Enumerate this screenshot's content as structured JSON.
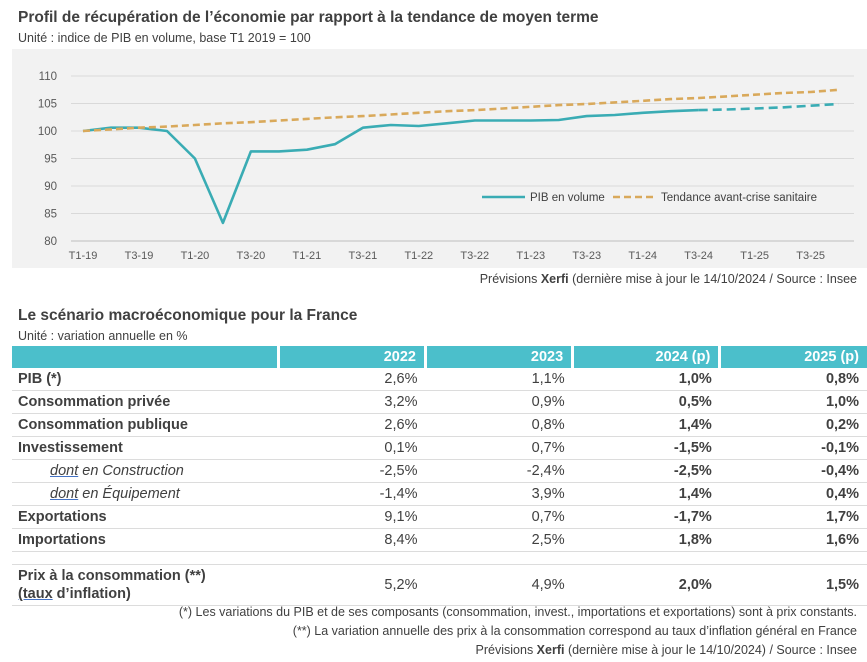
{
  "chart_data": {
    "type": "line",
    "title": "Profil de récupération de l’économie par rapport à la tendance de moyen terme",
    "subtitle": "Unité : indice de PIB en volume, base T1 2019 = 100",
    "ylim": [
      80,
      110
    ],
    "yticks": [
      "80",
      "85",
      "90",
      "95",
      "100",
      "105",
      "110"
    ],
    "grid": "horizontal",
    "legend_position": "inside-right",
    "x": [
      "T1-19",
      "T2-19",
      "T3-19",
      "T4-19",
      "T1-20",
      "T2-20",
      "T3-20",
      "T4-20",
      "T1-21",
      "T2-21",
      "T3-21",
      "T4-21",
      "T1-22",
      "T2-22",
      "T3-22",
      "T4-22",
      "T1-23",
      "T2-23",
      "T3-23",
      "T4-23",
      "T1-24",
      "T2-24",
      "T3-24",
      "T4-24",
      "T1-25",
      "T2-25",
      "T3-25",
      "T4-25"
    ],
    "xtick_labels": [
      "T1-19",
      "T3-19",
      "T1-20",
      "T3-20",
      "T1-21",
      "T3-21",
      "T1-22",
      "T3-22",
      "T1-23",
      "T3-23",
      "T1-24",
      "T3-24",
      "T1-25",
      "T3-25"
    ],
    "series": [
      {
        "name": "PIB en volume",
        "color": "#3aacb4",
        "style": "solid",
        "values": [
          100.0,
          100.6,
          100.6,
          100.0,
          95.0,
          83.3,
          96.3,
          96.3,
          96.6,
          97.6,
          100.6,
          101.1,
          100.9,
          101.4,
          101.9,
          101.9,
          101.9,
          102.0,
          102.7,
          102.9,
          103.3,
          103.6,
          103.8,
          null,
          null,
          null,
          null,
          null
        ]
      },
      {
        "name": "PIB en volume (prévision)",
        "color": "#3aacb4",
        "style": "dashed",
        "values": [
          null,
          null,
          null,
          null,
          null,
          null,
          null,
          null,
          null,
          null,
          null,
          null,
          null,
          null,
          null,
          null,
          null,
          null,
          null,
          null,
          null,
          null,
          103.8,
          103.9,
          104.1,
          104.3,
          104.6,
          104.9
        ]
      },
      {
        "name": "Tendance avant-crise sanitaire",
        "color": "#d9a95b",
        "style": "dashed",
        "values": [
          100.0,
          100.3,
          100.6,
          100.8,
          101.1,
          101.4,
          101.6,
          101.9,
          102.2,
          102.5,
          102.7,
          103.0,
          103.3,
          103.6,
          103.8,
          104.1,
          104.4,
          104.7,
          104.9,
          105.2,
          105.5,
          105.8,
          106.0,
          106.3,
          106.6,
          106.9,
          107.1,
          107.5
        ]
      }
    ],
    "legend": [
      "PIB en volume",
      "Tendance avant-crise sanitaire"
    ]
  },
  "chart_note": {
    "prefix": "Prévisions ",
    "brand": "Xerfi",
    "suffix": " (dernière mise à jour le 14/10/2024 / Source : Insee"
  },
  "scenario": {
    "title": "Le scénario macroéconomique pour la France",
    "unit": "Unité : variation annuelle en %",
    "headers": [
      "",
      "2022",
      "2023",
      "2024 (p)",
      "2025 (p)"
    ],
    "rows": [
      {
        "label": "PIB (*)",
        "v": [
          "2,6%",
          "1,1%",
          "1,0%",
          "0,8%"
        ]
      },
      {
        "label": "Consommation privée",
        "v": [
          "3,2%",
          "0,9%",
          "0,5%",
          "1,0%"
        ]
      },
      {
        "label": "Consommation publique",
        "v": [
          "2,6%",
          "0,8%",
          "1,4%",
          "0,2%"
        ]
      },
      {
        "label": "Investissement",
        "v": [
          "0,1%",
          "0,7%",
          "-1,5%",
          "-0,1%"
        ]
      },
      {
        "label_a": "dont",
        "label_b": " en Construction",
        "v": [
          "-2,5%",
          "-2,4%",
          "-2,5%",
          "-0,4%"
        ]
      },
      {
        "label_a": "dont",
        "label_b": " en Équipement",
        "v": [
          "-1,4%",
          "3,9%",
          "1,4%",
          "0,4%"
        ]
      },
      {
        "label": "Exportations",
        "v": [
          "9,1%",
          "0,7%",
          "-1,7%",
          "1,7%"
        ]
      },
      {
        "label": "Importations",
        "v": [
          "8,4%",
          "2,5%",
          "1,8%",
          "1,6%"
        ]
      },
      {
        "label_line1": "Prix à la consommation (**)",
        "label_line2_a": "(taux",
        "label_line2_b": " d’inflation)",
        "v": [
          "5,2%",
          "4,9%",
          "2,0%",
          "1,5%"
        ]
      }
    ],
    "notes": [
      "(*) Les variations du PIB et de ses composants (consommation, invest., importations et exportations) sont à prix constants.",
      "(**) La variation annuelle des prix à la consommation correspond au taux d’inflation général en France"
    ],
    "source_prefix": "Prévisions ",
    "source_brand": "Xerfi",
    "source_suffix": " (dernière mise à jour le 14/10/2024) / Source : Insee"
  }
}
